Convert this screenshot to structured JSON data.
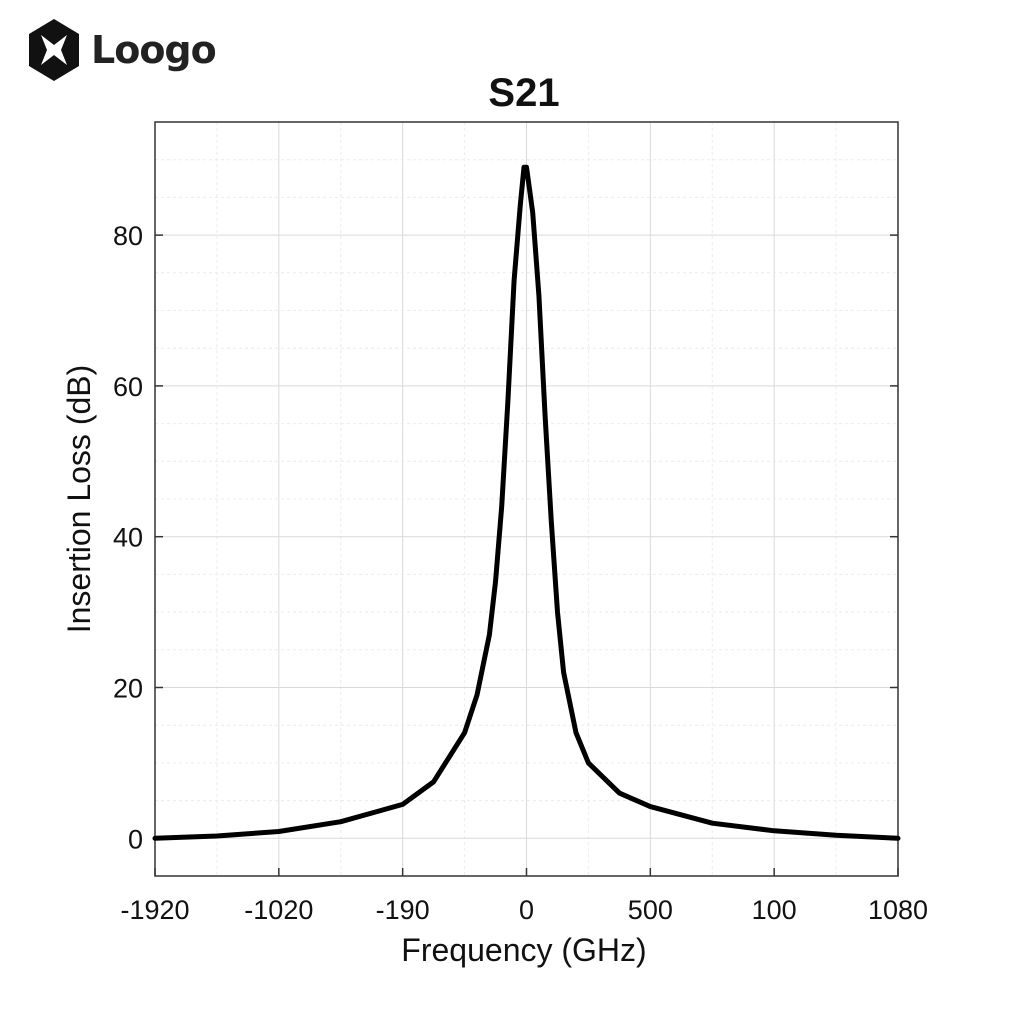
{
  "logo": {
    "text": "Loogo"
  },
  "chart_data": {
    "type": "line",
    "title": "S21",
    "xlabel": "Frequency (GHz)",
    "ylabel": "Insertion Loss (dB)",
    "x_tick_labels": [
      "-1920",
      "-1020",
      "-190",
      "0",
      "500",
      "100",
      "1080"
    ],
    "y_ticks": [
      0,
      20,
      40,
      60,
      80
    ],
    "ylim": [
      -5,
      95
    ],
    "grid": true,
    "series": [
      {
        "color": "#000000",
        "points": [
          [
            -3.0,
            0.0
          ],
          [
            -2.5,
            0.3
          ],
          [
            -2.0,
            0.9
          ],
          [
            -1.5,
            2.2
          ],
          [
            -1.0,
            4.5
          ],
          [
            -0.75,
            7.5
          ],
          [
            -0.5,
            14
          ],
          [
            -0.4,
            19
          ],
          [
            -0.3,
            27
          ],
          [
            -0.25,
            34
          ],
          [
            -0.2,
            44
          ],
          [
            -0.15,
            58
          ],
          [
            -0.1,
            74
          ],
          [
            -0.05,
            84
          ],
          [
            -0.02,
            89
          ],
          [
            0.0,
            89
          ],
          [
            0.05,
            83
          ],
          [
            0.1,
            72
          ],
          [
            0.15,
            56
          ],
          [
            0.2,
            42
          ],
          [
            0.25,
            30
          ],
          [
            0.3,
            22
          ],
          [
            0.4,
            14
          ],
          [
            0.5,
            10
          ],
          [
            0.75,
            6
          ],
          [
            1.0,
            4.2
          ],
          [
            1.5,
            2.0
          ],
          [
            2.0,
            1.0
          ],
          [
            2.5,
            0.4
          ],
          [
            3.0,
            0.0
          ]
        ]
      }
    ]
  }
}
